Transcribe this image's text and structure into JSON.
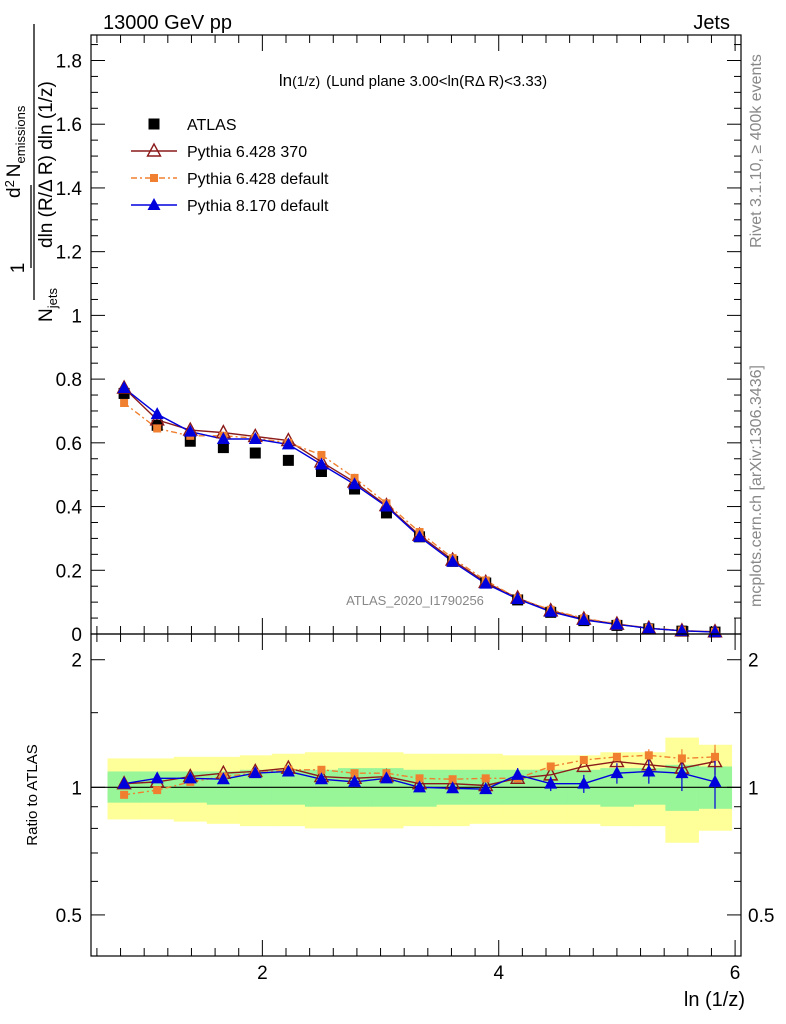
{
  "header": {
    "left": "13000 GeV pp",
    "right": "Jets"
  },
  "side_labels": {
    "top": "Rivet 3.1.10, ≥ 400k events",
    "bottom": "mcplots.cern.ch [arXiv:1306.3436]"
  },
  "watermark": "ATLAS_2020_I1790256",
  "chart_data": [
    {
      "type": "scatter",
      "title_main": "ln",
      "title_sub": "(1/z)",
      "title_rest": "(Lund plane 3.00<ln(RΔ R)<3.33)",
      "ylabel": {
        "num": "1",
        "den_a": "N",
        "den_a_sub": "jets",
        "den_b": "d",
        "den_b_sup": "2",
        "den_c": "N",
        "den_c_sub": "emissions",
        "den_d": "dln (R/Δ R) dln (1/z)"
      },
      "xlim": [
        0.55,
        6.05
      ],
      "ylim": [
        0,
        1.88
      ],
      "yticks": [
        0,
        0.2,
        0.4,
        0.6,
        0.8,
        1,
        1.2,
        1.4,
        1.6,
        1.8
      ],
      "ytick_labels": [
        "0",
        "0.2",
        "0.4",
        "0.6",
        "0.8",
        "1",
        "1.2",
        "1.4",
        "1.6",
        "1.8"
      ],
      "legend_position": "top-left",
      "x": [
        0.83,
        1.11,
        1.39,
        1.67,
        1.94,
        2.22,
        2.5,
        2.78,
        3.05,
        3.33,
        3.61,
        3.89,
        4.16,
        4.44,
        4.72,
        5.0,
        5.27,
        5.55,
        5.83
      ],
      "series": [
        {
          "name": "ATLAS",
          "color": "#000000",
          "marker": "square",
          "line": "none",
          "values": [
            0.755,
            0.655,
            0.605,
            0.585,
            0.568,
            0.545,
            0.51,
            0.455,
            0.38,
            0.305,
            0.228,
            0.16,
            0.107,
            0.068,
            0.042,
            0.027,
            0.016,
            0.009,
            0.006
          ]
        },
        {
          "name": "Pythia 6.428 370",
          "color": "#8b1a1a",
          "marker": "open-triangle",
          "line": "solid",
          "values": [
            0.772,
            0.672,
            0.64,
            0.632,
            0.62,
            0.607,
            0.54,
            0.477,
            0.403,
            0.31,
            0.232,
            0.162,
            0.113,
            0.073,
            0.047,
            0.031,
            0.018,
            0.01,
            0.007
          ]
        },
        {
          "name": "Pythia 6.428 default",
          "color": "#f08030",
          "marker": "square-small",
          "line": "dashdot",
          "values": [
            0.725,
            0.645,
            0.622,
            0.622,
            0.615,
            0.6,
            0.562,
            0.49,
            0.41,
            0.32,
            0.238,
            0.168,
            0.112,
            0.076,
            0.049,
            0.032,
            0.019,
            0.011,
            0.007
          ]
        },
        {
          "name": "Pythia 8.170 default",
          "color": "#0000dd",
          "marker": "filled-triangle",
          "line": "solid",
          "values": [
            0.772,
            0.69,
            0.635,
            0.612,
            0.612,
            0.595,
            0.532,
            0.47,
            0.4,
            0.305,
            0.227,
            0.158,
            0.11,
            0.07,
            0.044,
            0.03,
            0.018,
            0.01,
            0.006
          ]
        }
      ]
    },
    {
      "type": "scatter",
      "ylabel": "Ratio to ATLAS",
      "xlabel": "ln (1/z)",
      "xlim": [
        0.55,
        6.05
      ],
      "ylim": [
        0.4,
        2.3
      ],
      "log_y": true,
      "xticks": [
        2,
        4,
        6
      ],
      "xtick_labels": [
        "2",
        "4",
        "6"
      ],
      "yticks": [
        0.5,
        1,
        2
      ],
      "ytick_labels": [
        "0.5",
        "1",
        "2"
      ],
      "band_edges": [
        0.69,
        0.97,
        1.25,
        1.53,
        1.81,
        2.08,
        2.36,
        2.64,
        2.92,
        3.19,
        3.47,
        3.75,
        4.03,
        4.3,
        4.58,
        4.86,
        5.14,
        5.41,
        5.69,
        5.97
      ],
      "band_inner_lo": [
        0.92,
        0.92,
        0.92,
        0.91,
        0.91,
        0.91,
        0.9,
        0.9,
        0.9,
        0.9,
        0.91,
        0.91,
        0.91,
        0.91,
        0.91,
        0.9,
        0.91,
        0.88,
        0.89
      ],
      "band_inner_hi": [
        1.09,
        1.09,
        1.09,
        1.09,
        1.1,
        1.1,
        1.1,
        1.11,
        1.11,
        1.1,
        1.1,
        1.1,
        1.1,
        1.1,
        1.1,
        1.11,
        1.11,
        1.13,
        1.12
      ],
      "band_outer_lo": [
        0.84,
        0.84,
        0.83,
        0.82,
        0.81,
        0.81,
        0.8,
        0.8,
        0.8,
        0.81,
        0.81,
        0.82,
        0.82,
        0.82,
        0.82,
        0.81,
        0.81,
        0.74,
        0.79
      ],
      "band_outer_hi": [
        1.17,
        1.17,
        1.18,
        1.18,
        1.19,
        1.2,
        1.21,
        1.21,
        1.21,
        1.2,
        1.2,
        1.2,
        1.19,
        1.19,
        1.19,
        1.21,
        1.21,
        1.31,
        1.26
      ],
      "color_inner": "#98f598",
      "color_outer": "#ffff99",
      "series": [
        {
          "name": "Pythia 6.428 370",
          "color": "#8b1a1a",
          "marker": "open-triangle",
          "line": "solid",
          "values": [
            1.02,
            1.03,
            1.06,
            1.08,
            1.09,
            1.11,
            1.06,
            1.05,
            1.06,
            1.02,
            1.02,
            1.01,
            1.05,
            1.07,
            1.12,
            1.15,
            1.13,
            1.11,
            1.15
          ],
          "err": [
            0,
            0,
            0,
            0,
            0,
            0,
            0,
            0,
            0,
            0,
            0,
            0,
            0,
            0,
            0,
            0,
            0.04,
            0.06,
            0.08
          ]
        },
        {
          "name": "Pythia 6.428 default",
          "color": "#f08030",
          "marker": "square-small",
          "line": "dashdot",
          "values": [
            0.96,
            0.985,
            1.03,
            1.06,
            1.08,
            1.1,
            1.1,
            1.08,
            1.08,
            1.05,
            1.045,
            1.05,
            1.05,
            1.12,
            1.16,
            1.18,
            1.19,
            1.17,
            1.18
          ],
          "err": [
            0,
            0,
            0,
            0,
            0,
            0,
            0,
            0,
            0,
            0,
            0,
            0,
            0,
            0,
            0,
            0,
            0.04,
            0.06,
            0.08
          ]
        },
        {
          "name": "Pythia 8.170 default",
          "color": "#0000dd",
          "marker": "filled-triangle",
          "line": "solid",
          "values": [
            1.02,
            1.05,
            1.05,
            1.045,
            1.08,
            1.09,
            1.045,
            1.03,
            1.05,
            1.0,
            0.995,
            0.99,
            1.07,
            1.02,
            1.02,
            1.08,
            1.09,
            1.08,
            1.03
          ],
          "err": [
            0,
            0,
            0,
            0,
            0,
            0,
            0,
            0,
            0,
            0,
            0,
            0,
            0.04,
            0.04,
            0.05,
            0.06,
            0.07,
            0.1,
            0.14
          ]
        }
      ]
    }
  ]
}
